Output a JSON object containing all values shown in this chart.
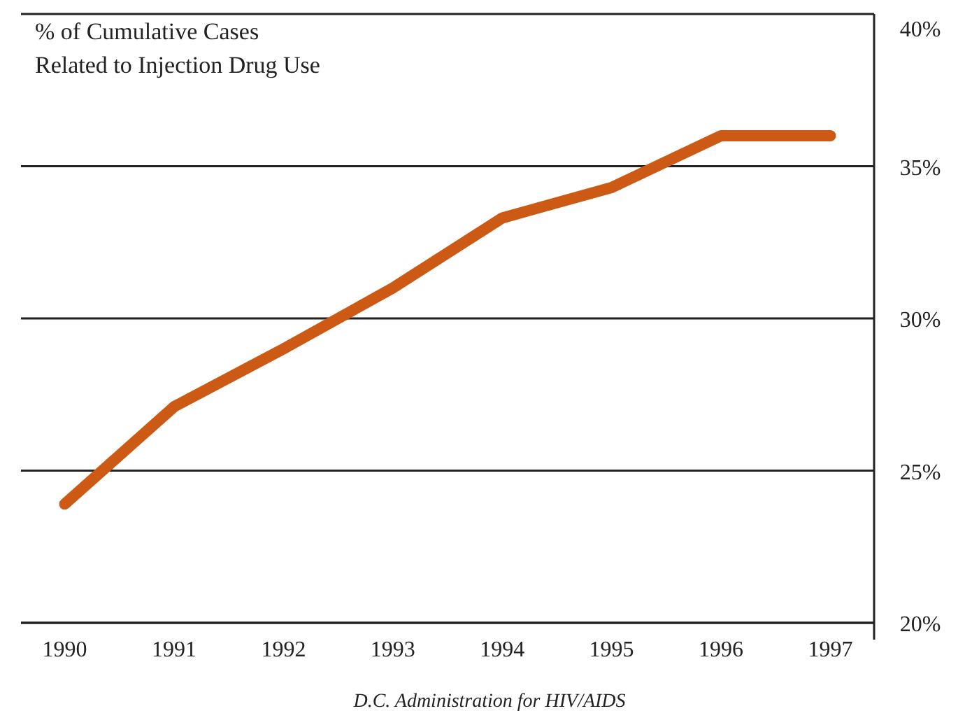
{
  "chart_data": {
    "type": "line",
    "title": "% of Cumulative Cases\nRelated to Injection Drug Use",
    "categories": [
      "1990",
      "1991",
      "1992",
      "1993",
      "1994",
      "1995",
      "1996",
      "1997"
    ],
    "series": [
      {
        "color": "#cc5a14",
        "values": [
          23.9,
          27.1,
          29.0,
          31.0,
          33.3,
          34.3,
          36.0,
          36.0
        ]
      }
    ],
    "ylim": [
      20,
      40
    ],
    "yticks": [
      {
        "value": 20,
        "label": "20%"
      },
      {
        "value": 25,
        "label": "25%"
      },
      {
        "value": 30,
        "label": "30%"
      },
      {
        "value": 35,
        "label": "35%"
      },
      {
        "value": 40,
        "label": "40%"
      }
    ],
    "grid": "y",
    "marker": "none",
    "line_style": "solid",
    "annotations": [
      "D.C. Administration for HIV/AIDS"
    ]
  }
}
